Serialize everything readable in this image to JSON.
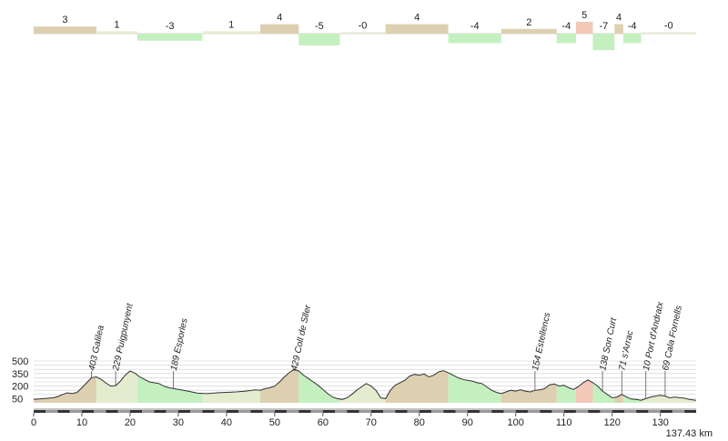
{
  "chart_data": {
    "type": "area",
    "x_unit": "km",
    "total_distance": 137.43,
    "total_distance_label": "137.43 km",
    "xlim": [
      0,
      137.43
    ],
    "ylim": [
      0,
      500
    ],
    "y_ticks": [
      50,
      200,
      350,
      500
    ],
    "x_ticks": [
      0,
      10,
      20,
      30,
      40,
      50,
      60,
      70,
      80,
      90,
      100,
      110,
      120,
      130
    ],
    "colors": {
      "climb": "#ddd0b0",
      "climb_steep": "#f3c8b8",
      "descent": "#c4f0c0",
      "flat": "#e4ecd0",
      "outline": "#333333",
      "grid": "#cccccc"
    },
    "grade_segments": [
      {
        "start": 0,
        "end": 13,
        "grade": 3
      },
      {
        "start": 13,
        "end": 21.5,
        "grade": 1
      },
      {
        "start": 21.5,
        "end": 35,
        "grade": -3
      },
      {
        "start": 35,
        "end": 47,
        "grade": 1
      },
      {
        "start": 47,
        "end": 55,
        "grade": 4
      },
      {
        "start": 55,
        "end": 63.5,
        "grade": -5
      },
      {
        "start": 63.5,
        "end": 73,
        "grade": 0
      },
      {
        "start": 73,
        "end": 86,
        "grade": 4
      },
      {
        "start": 86,
        "end": 97,
        "grade": -4
      },
      {
        "start": 97,
        "end": 108.5,
        "grade": 2
      },
      {
        "start": 108.5,
        "end": 112.5,
        "grade": -4
      },
      {
        "start": 112.5,
        "end": 116,
        "grade": 5
      },
      {
        "start": 116,
        "end": 120.5,
        "grade": -7
      },
      {
        "start": 120.5,
        "end": 122.3,
        "grade": 4
      },
      {
        "start": 122.3,
        "end": 126,
        "grade": -4
      },
      {
        "start": 126,
        "end": 137.43,
        "grade": 0
      }
    ],
    "elevation_profile": [
      [
        0,
        40
      ],
      [
        2,
        50
      ],
      [
        4,
        60
      ],
      [
        5,
        75
      ],
      [
        6,
        100
      ],
      [
        7,
        120
      ],
      [
        8,
        110
      ],
      [
        9,
        125
      ],
      [
        10,
        180
      ],
      [
        11,
        240
      ],
      [
        12,
        300
      ],
      [
        13,
        310
      ],
      [
        14,
        280
      ],
      [
        15,
        235
      ],
      [
        16,
        200
      ],
      [
        17,
        205
      ],
      [
        18,
        260
      ],
      [
        19,
        330
      ],
      [
        20,
        380
      ],
      [
        21,
        355
      ],
      [
        22,
        310
      ],
      [
        23,
        280
      ],
      [
        24,
        250
      ],
      [
        25,
        240
      ],
      [
        26,
        230
      ],
      [
        27,
        200
      ],
      [
        28,
        180
      ],
      [
        30,
        160
      ],
      [
        32,
        140
      ],
      [
        34,
        115
      ],
      [
        36,
        110
      ],
      [
        38,
        120
      ],
      [
        40,
        125
      ],
      [
        42,
        130
      ],
      [
        44,
        140
      ],
      [
        46,
        155
      ],
      [
        47,
        150
      ],
      [
        48,
        170
      ],
      [
        49,
        180
      ],
      [
        50,
        200
      ],
      [
        51,
        250
      ],
      [
        52,
        310
      ],
      [
        53,
        360
      ],
      [
        54,
        400
      ],
      [
        55,
        380
      ],
      [
        56,
        330
      ],
      [
        57,
        290
      ],
      [
        58,
        250
      ],
      [
        59,
        210
      ],
      [
        60,
        160
      ],
      [
        61,
        110
      ],
      [
        62,
        70
      ],
      [
        63,
        50
      ],
      [
        64,
        40
      ],
      [
        65,
        60
      ],
      [
        66,
        100
      ],
      [
        67,
        150
      ],
      [
        68,
        190
      ],
      [
        69,
        230
      ],
      [
        70,
        200
      ],
      [
        71,
        150
      ],
      [
        72,
        60
      ],
      [
        73,
        50
      ],
      [
        74,
        150
      ],
      [
        75,
        210
      ],
      [
        76,
        240
      ],
      [
        77,
        270
      ],
      [
        78,
        320
      ],
      [
        79,
        340
      ],
      [
        80,
        330
      ],
      [
        81,
        345
      ],
      [
        82,
        310
      ],
      [
        83,
        330
      ],
      [
        84,
        370
      ],
      [
        85,
        385
      ],
      [
        86,
        360
      ],
      [
        87,
        330
      ],
      [
        88,
        300
      ],
      [
        89,
        280
      ],
      [
        90,
        270
      ],
      [
        91,
        260
      ],
      [
        92,
        240
      ],
      [
        93,
        230
      ],
      [
        94,
        190
      ],
      [
        95,
        150
      ],
      [
        96,
        125
      ],
      [
        97,
        110
      ],
      [
        98,
        130
      ],
      [
        99,
        150
      ],
      [
        100,
        140
      ],
      [
        101,
        155
      ],
      [
        102,
        140
      ],
      [
        103,
        130
      ],
      [
        104,
        150
      ],
      [
        105,
        155
      ],
      [
        106,
        170
      ],
      [
        107,
        215
      ],
      [
        108,
        225
      ],
      [
        109,
        200
      ],
      [
        110,
        210
      ],
      [
        111,
        180
      ],
      [
        112,
        160
      ],
      [
        113,
        195
      ],
      [
        114,
        240
      ],
      [
        115,
        275
      ],
      [
        116,
        240
      ],
      [
        117,
        200
      ],
      [
        118,
        140
      ],
      [
        119,
        100
      ],
      [
        120,
        60
      ],
      [
        121,
        70
      ],
      [
        122,
        100
      ],
      [
        123,
        70
      ],
      [
        124,
        45
      ],
      [
        125,
        40
      ],
      [
        126,
        30
      ],
      [
        127,
        50
      ],
      [
        128,
        70
      ],
      [
        129,
        80
      ],
      [
        130,
        90
      ],
      [
        131,
        80
      ],
      [
        132,
        60
      ],
      [
        133,
        70
      ],
      [
        134,
        60
      ],
      [
        135,
        55
      ],
      [
        136,
        40
      ],
      [
        137.43,
        30
      ]
    ],
    "waypoints": [
      {
        "km": 12,
        "label": "403 Galilea"
      },
      {
        "km": 17,
        "label": "229 Puigpunyent"
      },
      {
        "km": 29,
        "label": "189 Esporles"
      },
      {
        "km": 54,
        "label": "429 Coll de Sller"
      },
      {
        "km": 104,
        "label": "154 Estellencs"
      },
      {
        "km": 118,
        "label": "138 Son Curt"
      },
      {
        "km": 122,
        "label": "71 s'Arrac"
      },
      {
        "km": 127,
        "label": "10 Port d'Andratx"
      },
      {
        "km": 131,
        "label": "69 Cala Fornells"
      }
    ]
  }
}
